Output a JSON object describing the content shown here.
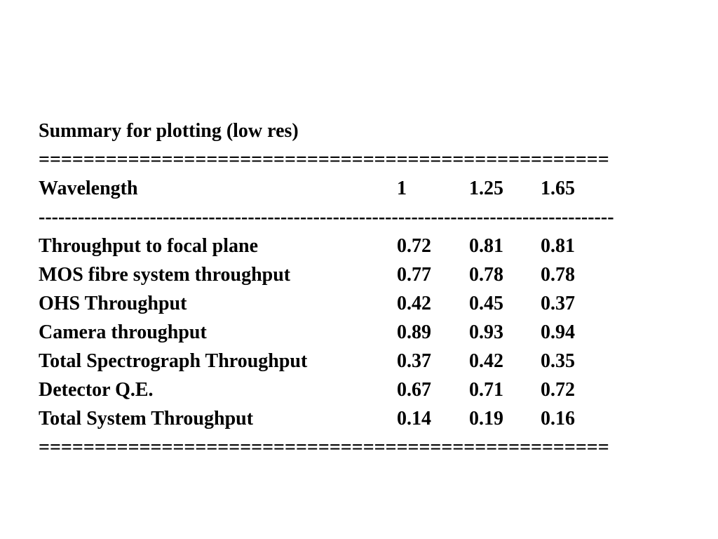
{
  "title": "Summary for plotting (low res)",
  "rule_top": "===================================================",
  "header": [
    "Wavelength",
    "1",
    "1.25",
    "1.65"
  ],
  "rule_mid": "----------------------------------------------------------------------------------------",
  "rows": [
    [
      "Throughput to focal plane",
      "0.72",
      "0.81",
      "0.81"
    ],
    [
      "MOS fibre system throughput",
      "0.77",
      "0.78",
      "0.78"
    ],
    [
      "OHS Throughput",
      "0.42",
      "0.45",
      "0.37"
    ],
    [
      "Camera throughput",
      "0.89",
      "0.93",
      "0.94"
    ],
    [
      "Total Spectrograph Throughput",
      "0.37",
      "0.42",
      "0.35"
    ],
    [
      "Detector Q.E.",
      "0.67",
      "0.71",
      "0.72"
    ],
    [
      "Total System Throughput",
      "0.14",
      "0.19",
      "0.16"
    ]
  ],
  "rule_bottom": "==================================================="
}
